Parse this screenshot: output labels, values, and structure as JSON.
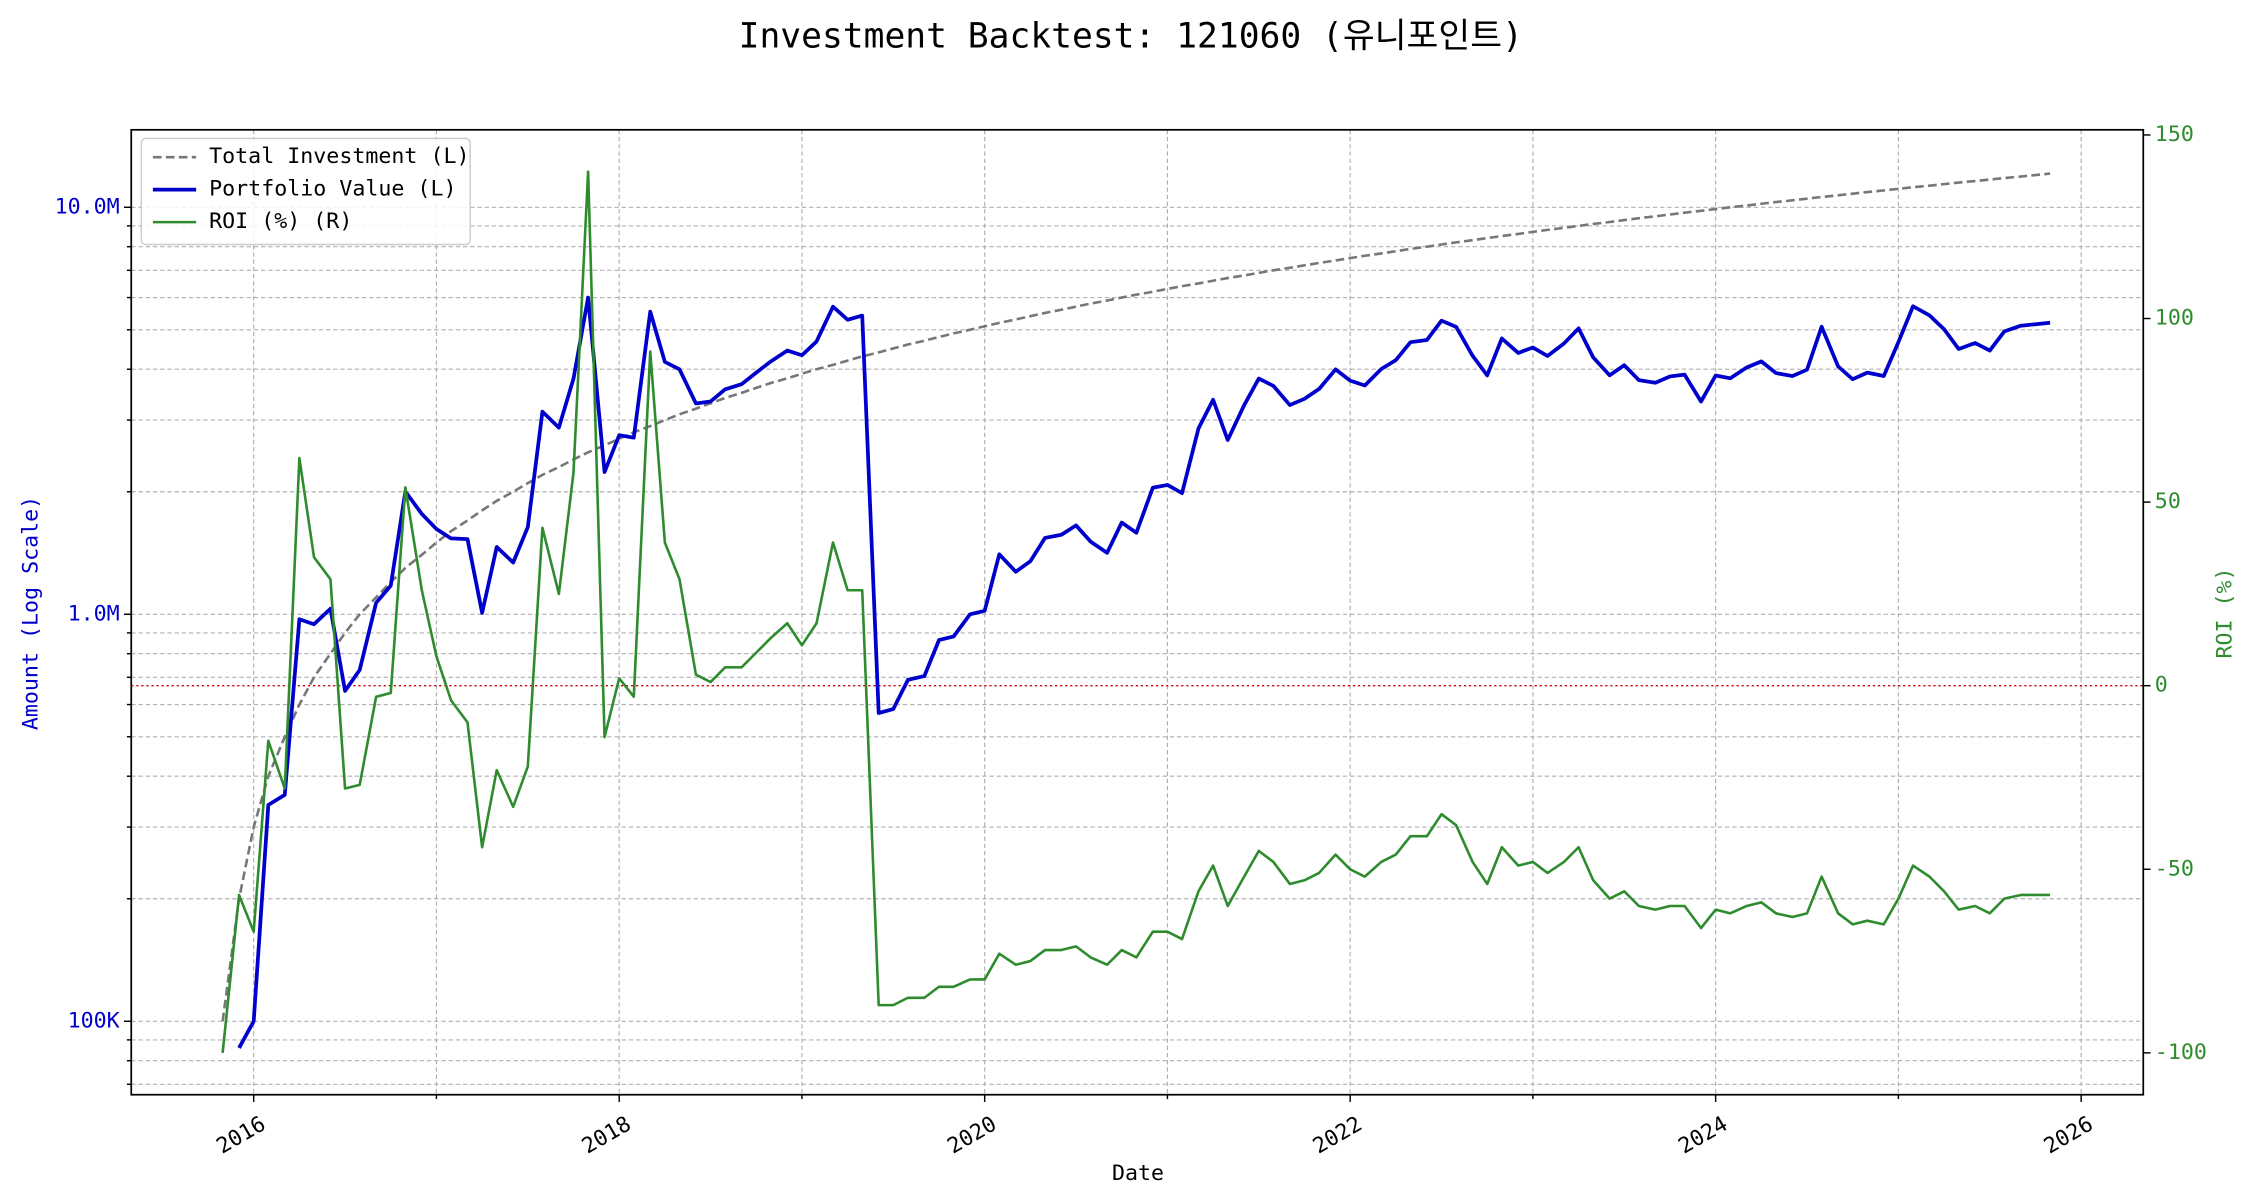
{
  "chart_data": {
    "type": "line",
    "title": "Investment Backtest: 121060 (유니포인트)",
    "xlabel": "Date",
    "ylabel": "Amount (Log Scale)",
    "y2label": "ROI (%)",
    "ylog": true,
    "grid": true,
    "legend_loc": "upper left",
    "xlim": [
      2015.33,
      2026.34
    ],
    "xticks": [
      2016,
      2018,
      2020,
      2022,
      2024,
      2026
    ],
    "xminorticks": [
      2017,
      2019,
      2021,
      2023,
      2025
    ],
    "ylim": [
      66000,
      15500000
    ],
    "yticks": [
      {
        "value": 100000,
        "label": "100K"
      },
      {
        "value": 1000000,
        "label": "1.0M"
      },
      {
        "value": 10000000,
        "label": "10.0M"
      }
    ],
    "yminorticks": [
      70000,
      80000,
      90000,
      200000,
      300000,
      400000,
      500000,
      600000,
      700000,
      800000,
      900000,
      2000000,
      3000000,
      4000000,
      5000000,
      6000000,
      7000000,
      8000000,
      9000000
    ],
    "y2lim": [
      -111.4,
      151.4
    ],
    "y2ticks": [
      -100,
      -50,
      0,
      50,
      100,
      150
    ],
    "reference_line": {
      "value": 0,
      "axis": "y2",
      "color": "#cc0000"
    },
    "ylabel_color": "#0000cc",
    "y2label_color": "#2e8b2e",
    "x": [
      2015.83,
      2015.92,
      2016.0,
      2016.08,
      2016.17,
      2016.25,
      2016.33,
      2016.42,
      2016.5,
      2016.58,
      2016.67,
      2016.75,
      2016.83,
      2016.92,
      2017.0,
      2017.08,
      2017.17,
      2017.25,
      2017.33,
      2017.42,
      2017.5,
      2017.58,
      2017.67,
      2017.75,
      2017.83,
      2017.92,
      2018.0,
      2018.08,
      2018.17,
      2018.25,
      2018.33,
      2018.42,
      2018.5,
      2018.58,
      2018.67,
      2018.75,
      2018.83,
      2018.92,
      2019.0,
      2019.08,
      2019.17,
      2019.25,
      2019.33,
      2019.42,
      2019.5,
      2019.58,
      2019.67,
      2019.75,
      2019.83,
      2019.92,
      2020.0,
      2020.08,
      2020.17,
      2020.25,
      2020.33,
      2020.42,
      2020.5,
      2020.58,
      2020.67,
      2020.75,
      2020.83,
      2020.92,
      2021.0,
      2021.08,
      2021.17,
      2021.25,
      2021.33,
      2021.42,
      2021.5,
      2021.58,
      2021.67,
      2021.75,
      2021.83,
      2021.92,
      2022.0,
      2022.08,
      2022.17,
      2022.25,
      2022.33,
      2022.42,
      2022.5,
      2022.58,
      2022.67,
      2022.75,
      2022.83,
      2022.92,
      2023.0,
      2023.08,
      2023.17,
      2023.25,
      2023.33,
      2023.42,
      2023.5,
      2023.58,
      2023.67,
      2023.75,
      2023.83,
      2023.92,
      2024.0,
      2024.08,
      2024.17,
      2024.25,
      2024.33,
      2024.42,
      2024.5,
      2024.58,
      2024.67,
      2024.75,
      2024.83,
      2024.92,
      2025.0,
      2025.08,
      2025.17,
      2025.25,
      2025.33,
      2025.42,
      2025.5,
      2025.58,
      2025.67,
      2025.75,
      2025.83
    ],
    "series": [
      {
        "name": "Total Investment (L)",
        "color": "#777777",
        "dashed": true,
        "axis": "y",
        "values": [
          100000,
          200000,
          300000,
          400000,
          500000,
          600000,
          700000,
          800000,
          900000,
          1000000,
          1100000,
          1200000,
          1300000,
          1400000,
          1500000,
          1600000,
          1700000,
          1800000,
          1900000,
          2000000,
          2100000,
          2200000,
          2300000,
          2400000,
          2500000,
          2600000,
          2700000,
          2800000,
          2900000,
          3000000,
          3100000,
          3200000,
          3300000,
          3400000,
          3500000,
          3600000,
          3700000,
          3800000,
          3900000,
          4000000,
          4100000,
          4200000,
          4300000,
          4400000,
          4500000,
          4600000,
          4700000,
          4800000,
          4900000,
          5000000,
          5100000,
          5200000,
          5300000,
          5400000,
          5500000,
          5600000,
          5700000,
          5800000,
          5900000,
          6000000,
          6100000,
          6200000,
          6300000,
          6400000,
          6500000,
          6600000,
          6700000,
          6800000,
          6900000,
          7000000,
          7100000,
          7200000,
          7300000,
          7400000,
          7500000,
          7600000,
          7700000,
          7800000,
          7900000,
          8000000,
          8100000,
          8200000,
          8300000,
          8400000,
          8500000,
          8600000,
          8700000,
          8800000,
          8900000,
          9000000,
          9100000,
          9200000,
          9300000,
          9400000,
          9500000,
          9600000,
          9700000,
          9800000,
          9900000,
          10000000,
          10100000,
          10200000,
          10300000,
          10400000,
          10500000,
          10600000,
          10700000,
          10800000,
          10900000,
          11000000,
          11100000,
          11200000,
          11300000,
          11400000,
          11500000,
          11600000,
          11700000,
          11800000,
          11900000,
          12000000,
          12100000
        ]
      },
      {
        "name": "Portfolio Value (L)",
        "color": "#0000cc",
        "axis": "y",
        "values": [
          null,
          86000,
          100000,
          340000,
          360000,
          972000,
          945000,
          1032000,
          648000,
          730000,
          1067000,
          1176000,
          2002000,
          1764000,
          1620000,
          1536000,
          1530000,
          1008000,
          1463000,
          1340000,
          1638000,
          3146000,
          2875000,
          3792000,
          6000000,
          2236000,
          2754000,
          2716000,
          5539000,
          4170000,
          3999000,
          3296000,
          3333000,
          3570000,
          3675000,
          3924000,
          4181000,
          4446000,
          4329000,
          4680000,
          5699000,
          5292000,
          5418000,
          572000,
          585000,
          690000,
          705000,
          864000,
          882000,
          1000000,
          1020000,
          1404000,
          1272000,
          1350000,
          1540000,
          1568000,
          1653000,
          1508000,
          1416000,
          1680000,
          1586000,
          2046000,
          2079000,
          1984000,
          2860000,
          3366000,
          2680000,
          3264000,
          3795000,
          3640000,
          3266000,
          3384000,
          3577000,
          3996000,
          3750000,
          3648000,
          4004000,
          4212000,
          4661000,
          4720000,
          5265000,
          5084000,
          4316000,
          3864000,
          4760000,
          4386000,
          4524000,
          4312000,
          4628000,
          5040000,
          4277000,
          3864000,
          4092000,
          3760000,
          3705000,
          3840000,
          3880000,
          3332000,
          3861000,
          3800000,
          4040000,
          4182000,
          3914000,
          3848000,
          3990000,
          5088000,
          4066000,
          3780000,
          3924000,
          3850000,
          4662000,
          5712000,
          5424000,
          5016000,
          4485000,
          4640000,
          4446000,
          4956000,
          5117000,
          5160000,
          5203000
        ]
      },
      {
        "name": "ROI (%) (R)",
        "color": "#2e8b2e",
        "axis": "y2",
        "values": [
          -100,
          -57,
          -67,
          -15,
          -28,
          62,
          35,
          29,
          -28,
          -27,
          -3,
          -2,
          54,
          26,
          8,
          -4,
          -10,
          -44,
          -23,
          -33,
          -22,
          43,
          25,
          58,
          140,
          -14,
          2,
          -3,
          91,
          39,
          29,
          3,
          1,
          5,
          5,
          9,
          13,
          17,
          11,
          17,
          39,
          26,
          26,
          -87,
          -87,
          -85,
          -85,
          -82,
          -82,
          -80,
          -80,
          -73,
          -76,
          -75,
          -72,
          -72,
          -71,
          -74,
          -76,
          -72,
          -74,
          -67,
          -67,
          -69,
          -56,
          -49,
          -60,
          -52,
          -45,
          -48,
          -54,
          -53,
          -51,
          -46,
          -50,
          -52,
          -48,
          -46,
          -41,
          -41,
          -35,
          -38,
          -48,
          -54,
          -44,
          -49,
          -48,
          -51,
          -48,
          -44,
          -53,
          -58,
          -56,
          -60,
          -61,
          -60,
          -60,
          -66,
          -61,
          -62,
          -60,
          -59,
          -62,
          -63,
          -62,
          -52,
          -62,
          -65,
          -64,
          -65,
          -58,
          -49,
          -52,
          -56,
          -61,
          -60,
          -62,
          -58,
          -57,
          -57,
          -57
        ]
      }
    ]
  }
}
